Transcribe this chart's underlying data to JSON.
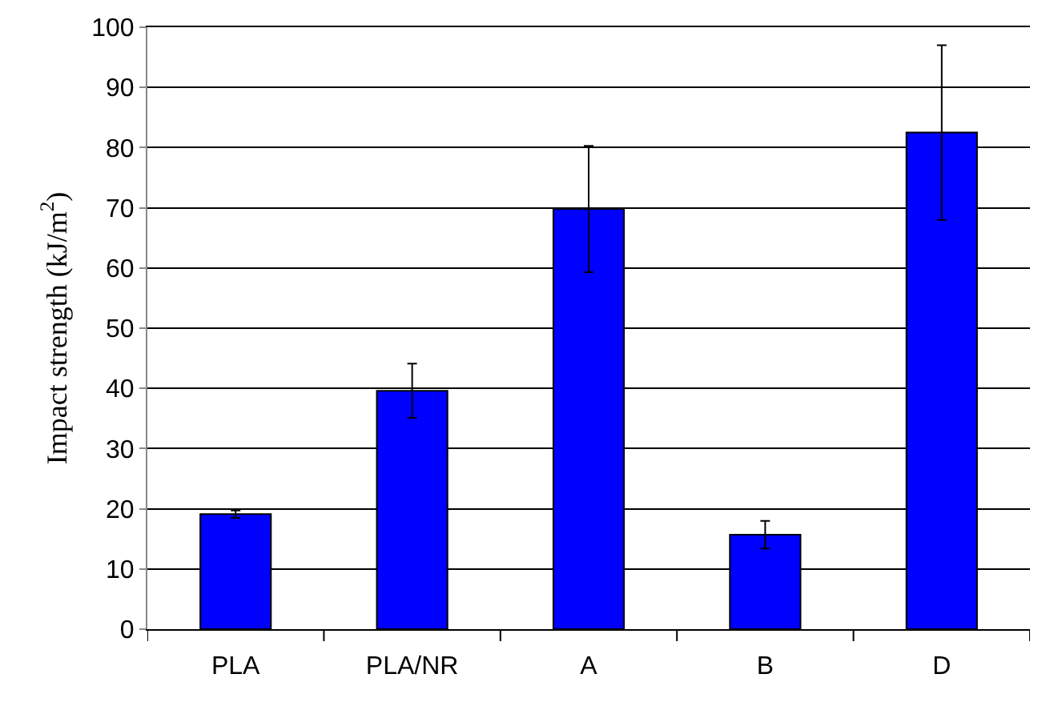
{
  "chart_data": {
    "type": "bar",
    "ylabel": "Impact strength (kJ/m$^{2}$)",
    "categories": [
      "PLA",
      "PLA/NR",
      "A",
      "B",
      "D"
    ],
    "values": [
      19.1,
      39.6,
      69.8,
      15.7,
      82.5
    ],
    "errors": [
      0.6,
      4.5,
      10.5,
      2.3,
      14.5
    ],
    "color": "#0000ff",
    "ylim": [
      0,
      100
    ],
    "yticks": [
      0,
      10,
      20,
      30,
      40,
      50,
      60,
      70,
      80,
      90,
      100
    ],
    "grid": "y"
  }
}
